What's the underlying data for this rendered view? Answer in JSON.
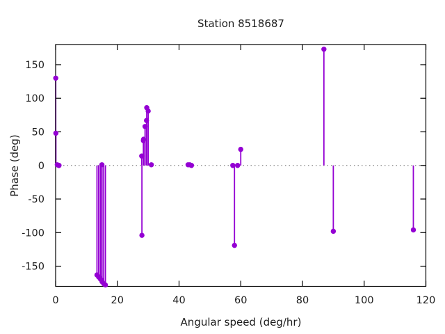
{
  "chart_data": {
    "type": "scatter",
    "style": "impulses-with-points",
    "title": "Station 8518687",
    "xlabel": "Angular speed (deg/hr)",
    "ylabel": "Phase (deg)",
    "xlim": [
      0,
      120
    ],
    "ylim": [
      -180,
      180
    ],
    "x_ticks": [
      0,
      20,
      40,
      60,
      80,
      100,
      120
    ],
    "y_ticks": [
      -150,
      -100,
      -50,
      0,
      50,
      100,
      150
    ],
    "legend_position": "none",
    "grid": "dotted horizontal line at y=0 only",
    "series_color": "#9400d3",
    "zero_line_color": "#8a8a8a",
    "border_color": "#000000",
    "points": [
      [
        0.04,
        130
      ],
      [
        0.08,
        48
      ],
      [
        0.54,
        1
      ],
      [
        1.02,
        0
      ],
      [
        1.1,
        0
      ],
      [
        13.4,
        -163
      ],
      [
        13.94,
        -166
      ],
      [
        14.5,
        -169
      ],
      [
        14.96,
        -171
      ],
      [
        15.0,
        1
      ],
      [
        15.04,
        -173
      ],
      [
        15.59,
        -176
      ],
      [
        16.14,
        -178
      ],
      [
        27.9,
        14
      ],
      [
        27.97,
        -104
      ],
      [
        28.44,
        37
      ],
      [
        28.51,
        39
      ],
      [
        28.98,
        58
      ],
      [
        29.46,
        67
      ],
      [
        29.53,
        86
      ],
      [
        30.0,
        81
      ],
      [
        31.02,
        1
      ],
      [
        42.93,
        1
      ],
      [
        43.48,
        1
      ],
      [
        44.03,
        0
      ],
      [
        57.42,
        0
      ],
      [
        57.97,
        -119
      ],
      [
        58.98,
        0
      ],
      [
        60.0,
        24
      ],
      [
        86.95,
        173
      ],
      [
        90.0,
        -98
      ],
      [
        115.94,
        -96
      ]
    ]
  }
}
